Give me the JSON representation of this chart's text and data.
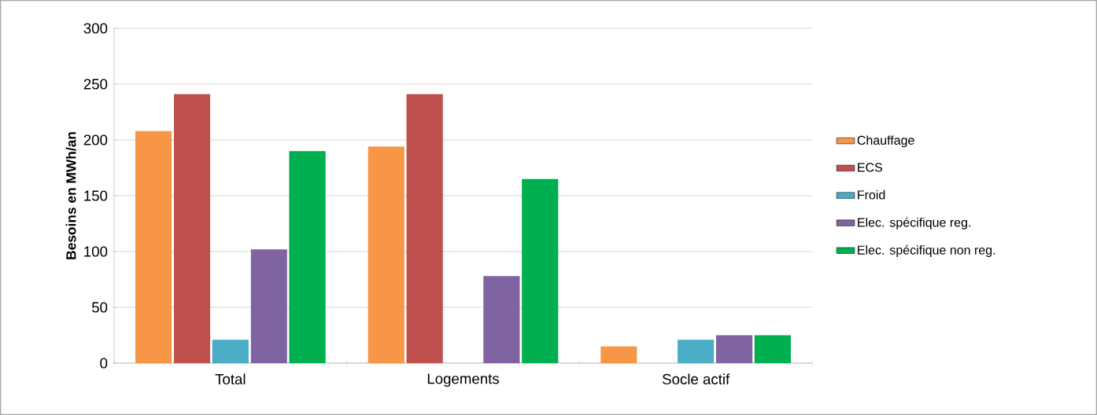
{
  "chart_data": {
    "type": "bar",
    "ylabel": "Besoins en MWh/an",
    "categories": [
      "Total",
      "Logements",
      "Socle actif"
    ],
    "series": [
      {
        "name": "Chauffage",
        "color": "#f79646",
        "values": [
          208,
          194,
          15
        ]
      },
      {
        "name": "ECS",
        "color": "#c0504d",
        "values": [
          241,
          241,
          0
        ]
      },
      {
        "name": "Froid",
        "color": "#4bacc6",
        "values": [
          21,
          0,
          21
        ]
      },
      {
        "name": "Elec. spécifique reg.",
        "color": "#8064a2",
        "values": [
          102,
          78,
          25
        ]
      },
      {
        "name": "Elec. spécifique non reg.",
        "color": "#00b050",
        "values": [
          190,
          165,
          25
        ]
      }
    ],
    "ylim": [
      0,
      300
    ],
    "yticks": [
      0,
      50,
      100,
      150,
      200,
      250,
      300
    ],
    "grid": "y",
    "legend": "right"
  }
}
